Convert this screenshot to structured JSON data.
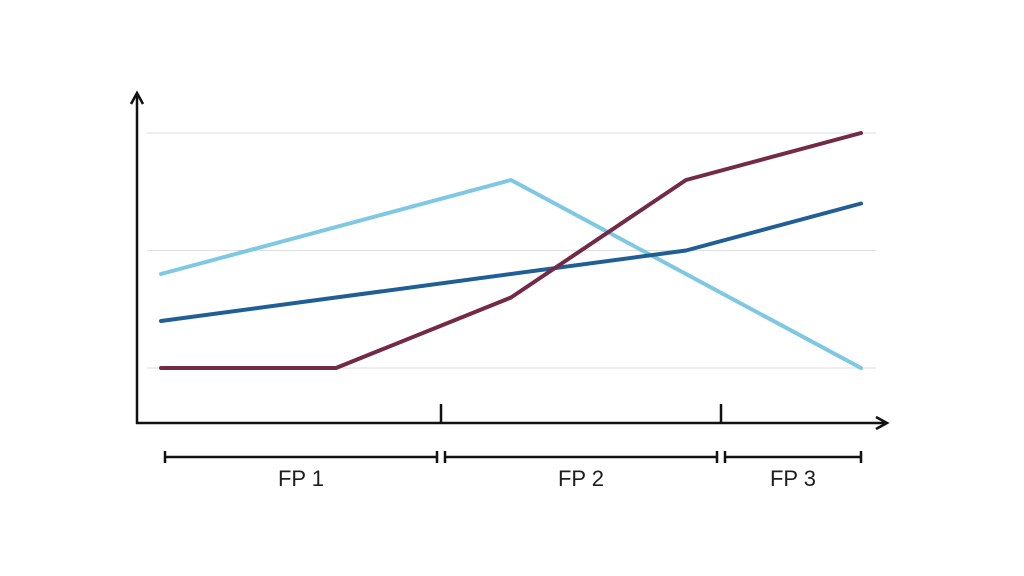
{
  "chart_data": {
    "type": "line",
    "x": [
      0,
      1,
      2,
      3,
      4
    ],
    "ylim": [
      0,
      3
    ],
    "grid": true,
    "gridlines": [
      1,
      2,
      3
    ],
    "series": [
      {
        "color": "#7ec8e3",
        "values": [
          1.8,
          null,
          2.6,
          null,
          1.0
        ]
      },
      {
        "color": "#1f5f96",
        "values": [
          1.4,
          null,
          null,
          2.0,
          2.4
        ]
      },
      {
        "color": "#722a46",
        "values": [
          1.0,
          1.0,
          1.6,
          2.6,
          3.0
        ]
      }
    ],
    "periods": [
      {
        "label": "FP 1",
        "from": 0,
        "to": 1.6
      },
      {
        "label": "FP 2",
        "from": 1.6,
        "to": 3.2
      },
      {
        "label": "FP 3",
        "from": 3.2,
        "to": 4
      }
    ],
    "axis_ticks": [
      1.6,
      3.2
    ]
  }
}
